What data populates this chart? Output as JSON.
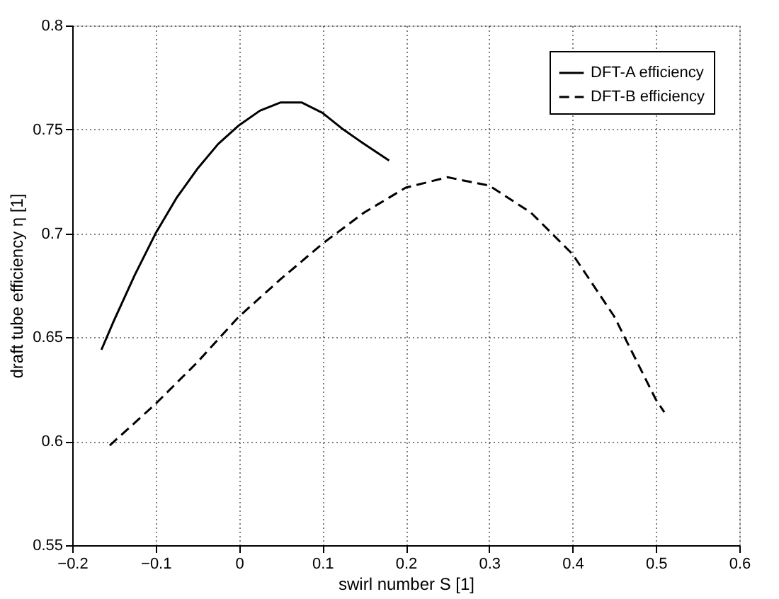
{
  "chart_data": {
    "type": "line",
    "xlabel": "swirl number S [1]",
    "ylabel": "draft tube efficiency η [1]",
    "xlim": [
      -0.2,
      0.6
    ],
    "xticks": [
      -0.2,
      -0.1,
      0,
      0.1,
      0.2,
      0.3,
      0.4,
      0.5,
      0.6
    ],
    "ylim": [
      0.55,
      0.8
    ],
    "yticks": [
      0.55,
      0.6,
      0.65,
      0.7,
      0.75,
      0.8
    ],
    "grid": true,
    "legend": "top right",
    "marker": "none",
    "series": [
      {
        "name": "DFT-A efficiency",
        "color": "#000000",
        "line_style": "solid",
        "x": [
          -0.165,
          -0.15,
          -0.125,
          -0.1,
          -0.075,
          -0.05,
          -0.025,
          0,
          0.025,
          0.05,
          0.075,
          0.1,
          0.125,
          0.15,
          0.18
        ],
        "values": [
          0.644,
          0.658,
          0.68,
          0.7,
          0.717,
          0.731,
          0.743,
          0.752,
          0.759,
          0.763,
          0.763,
          0.758,
          0.75,
          0.743,
          0.735
        ]
      },
      {
        "name": "DFT-B efficiency",
        "color": "#000000",
        "line_style": "dashed",
        "x": [
          -0.155,
          -0.1,
          -0.05,
          0,
          0.05,
          0.1,
          0.15,
          0.2,
          0.25,
          0.3,
          0.35,
          0.4,
          0.45,
          0.5,
          0.51
        ],
        "values": [
          0.598,
          0.618,
          0.638,
          0.66,
          0.678,
          0.695,
          0.71,
          0.722,
          0.727,
          0.723,
          0.71,
          0.69,
          0.66,
          0.62,
          0.614
        ]
      }
    ]
  }
}
